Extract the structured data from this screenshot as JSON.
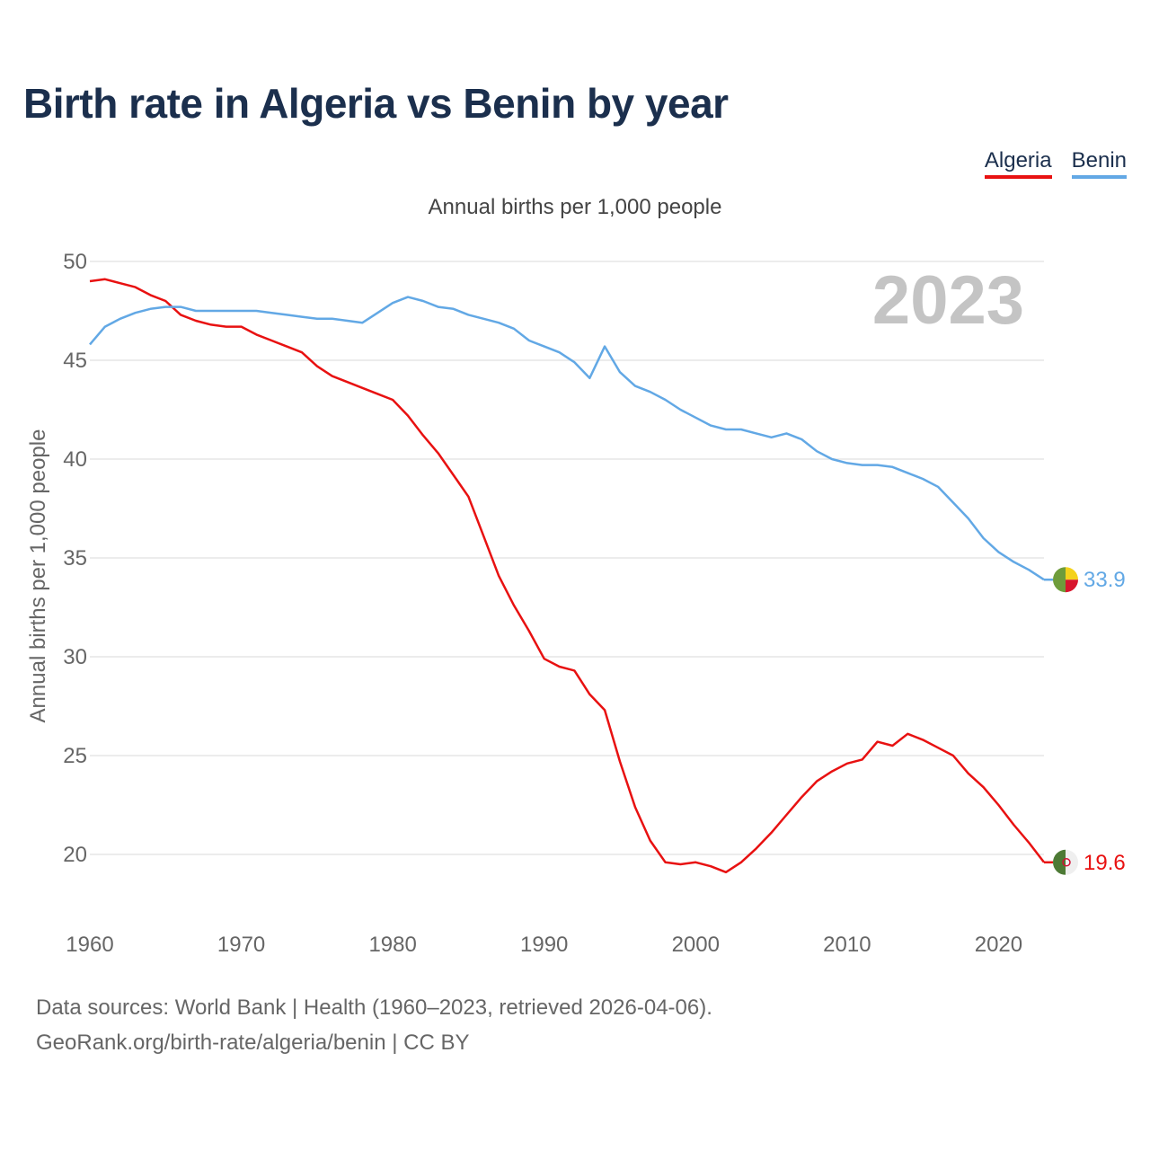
{
  "title": "Birth rate in Algeria vs Benin by year",
  "legend": {
    "algeria": "Algeria",
    "benin": "Benin"
  },
  "subtitle": "Annual births per 1,000 people",
  "year_label": "2023",
  "footer": {
    "line1": "Data sources: World Bank | Health (1960–2023, retrieved 2026-04-06).",
    "line2": "GeoRank.org/birth-rate/algeria/benin | CC BY"
  },
  "colors": {
    "algeria": "#e81111",
    "benin": "#62a8e5",
    "grid": "#e6e6e6",
    "year": "#c4c4c4"
  },
  "chart_data": {
    "type": "line",
    "title": "Birth rate in Algeria vs Benin by year",
    "xlabel": "",
    "ylabel": "Annual births per 1,000 people",
    "xlim": [
      1960,
      2023
    ],
    "ylim": [
      17,
      50
    ],
    "x_ticks": [
      1960,
      1970,
      1980,
      1990,
      2000,
      2010,
      2020
    ],
    "y_ticks": [
      20,
      25,
      30,
      35,
      40,
      45,
      50
    ],
    "x": [
      1960,
      1961,
      1962,
      1963,
      1964,
      1965,
      1966,
      1967,
      1968,
      1969,
      1970,
      1971,
      1972,
      1973,
      1974,
      1975,
      1976,
      1977,
      1978,
      1979,
      1980,
      1981,
      1982,
      1983,
      1984,
      1985,
      1986,
      1987,
      1988,
      1989,
      1990,
      1991,
      1992,
      1993,
      1994,
      1995,
      1996,
      1997,
      1998,
      1999,
      2000,
      2001,
      2002,
      2003,
      2004,
      2005,
      2006,
      2007,
      2008,
      2009,
      2010,
      2011,
      2012,
      2013,
      2014,
      2015,
      2016,
      2017,
      2018,
      2019,
      2020,
      2021,
      2022,
      2023
    ],
    "series": [
      {
        "name": "Algeria",
        "end_label": "19.6",
        "values": [
          49.0,
          49.1,
          48.9,
          48.7,
          48.3,
          48.0,
          47.3,
          47.0,
          46.8,
          46.7,
          46.7,
          46.3,
          46.0,
          45.7,
          45.4,
          44.7,
          44.2,
          43.9,
          43.6,
          43.3,
          43.0,
          42.2,
          41.2,
          40.3,
          39.2,
          38.1,
          36.1,
          34.1,
          32.6,
          31.3,
          29.9,
          29.5,
          29.3,
          28.1,
          27.3,
          24.7,
          22.4,
          20.7,
          19.6,
          19.5,
          19.6,
          19.4,
          19.1,
          19.6,
          20.3,
          21.1,
          22.0,
          22.9,
          23.7,
          24.2,
          24.6,
          24.8,
          25.7,
          25.5,
          26.1,
          25.8,
          25.4,
          25.0,
          24.1,
          23.4,
          22.5,
          21.5,
          20.6,
          19.6
        ]
      },
      {
        "name": "Benin",
        "end_label": "33.9",
        "values": [
          45.8,
          46.7,
          47.1,
          47.4,
          47.6,
          47.7,
          47.7,
          47.5,
          47.5,
          47.5,
          47.5,
          47.5,
          47.4,
          47.3,
          47.2,
          47.1,
          47.1,
          47.0,
          46.9,
          47.4,
          47.9,
          48.2,
          48.0,
          47.7,
          47.6,
          47.3,
          47.1,
          46.9,
          46.6,
          46.0,
          45.7,
          45.4,
          44.9,
          44.1,
          45.7,
          44.4,
          43.7,
          43.4,
          43.0,
          42.5,
          42.1,
          41.7,
          41.5,
          41.5,
          41.3,
          41.1,
          41.3,
          41.0,
          40.4,
          40.0,
          39.8,
          39.7,
          39.7,
          39.6,
          39.3,
          39.0,
          38.6,
          37.8,
          37.0,
          36.0,
          35.3,
          34.8,
          34.4,
          33.9
        ]
      }
    ]
  }
}
